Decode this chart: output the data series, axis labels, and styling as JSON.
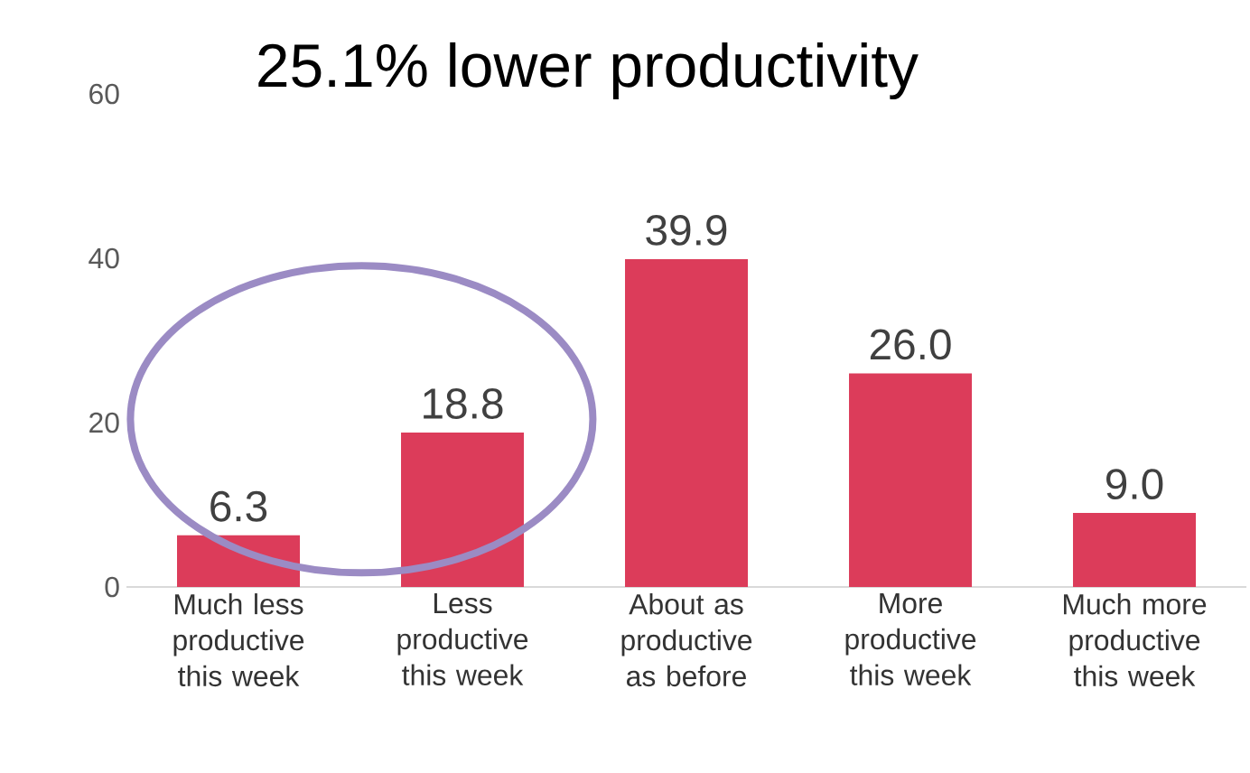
{
  "chart_data": {
    "type": "bar",
    "title": "25.1% lower productivity",
    "categories": [
      "Much less productive this week",
      "Less productive this week",
      "About as productive as before",
      "More productive this week",
      "Much more productive this week"
    ],
    "values": [
      6.3,
      18.8,
      39.9,
      26.0,
      9.0
    ],
    "value_labels": [
      "6.3",
      "18.8",
      "39.9",
      "26.0",
      "9.0"
    ],
    "color": "#dc3c5a",
    "ylim": [
      0,
      60
    ],
    "yticks": [
      0,
      20,
      40,
      60
    ],
    "grid": false
  }
}
